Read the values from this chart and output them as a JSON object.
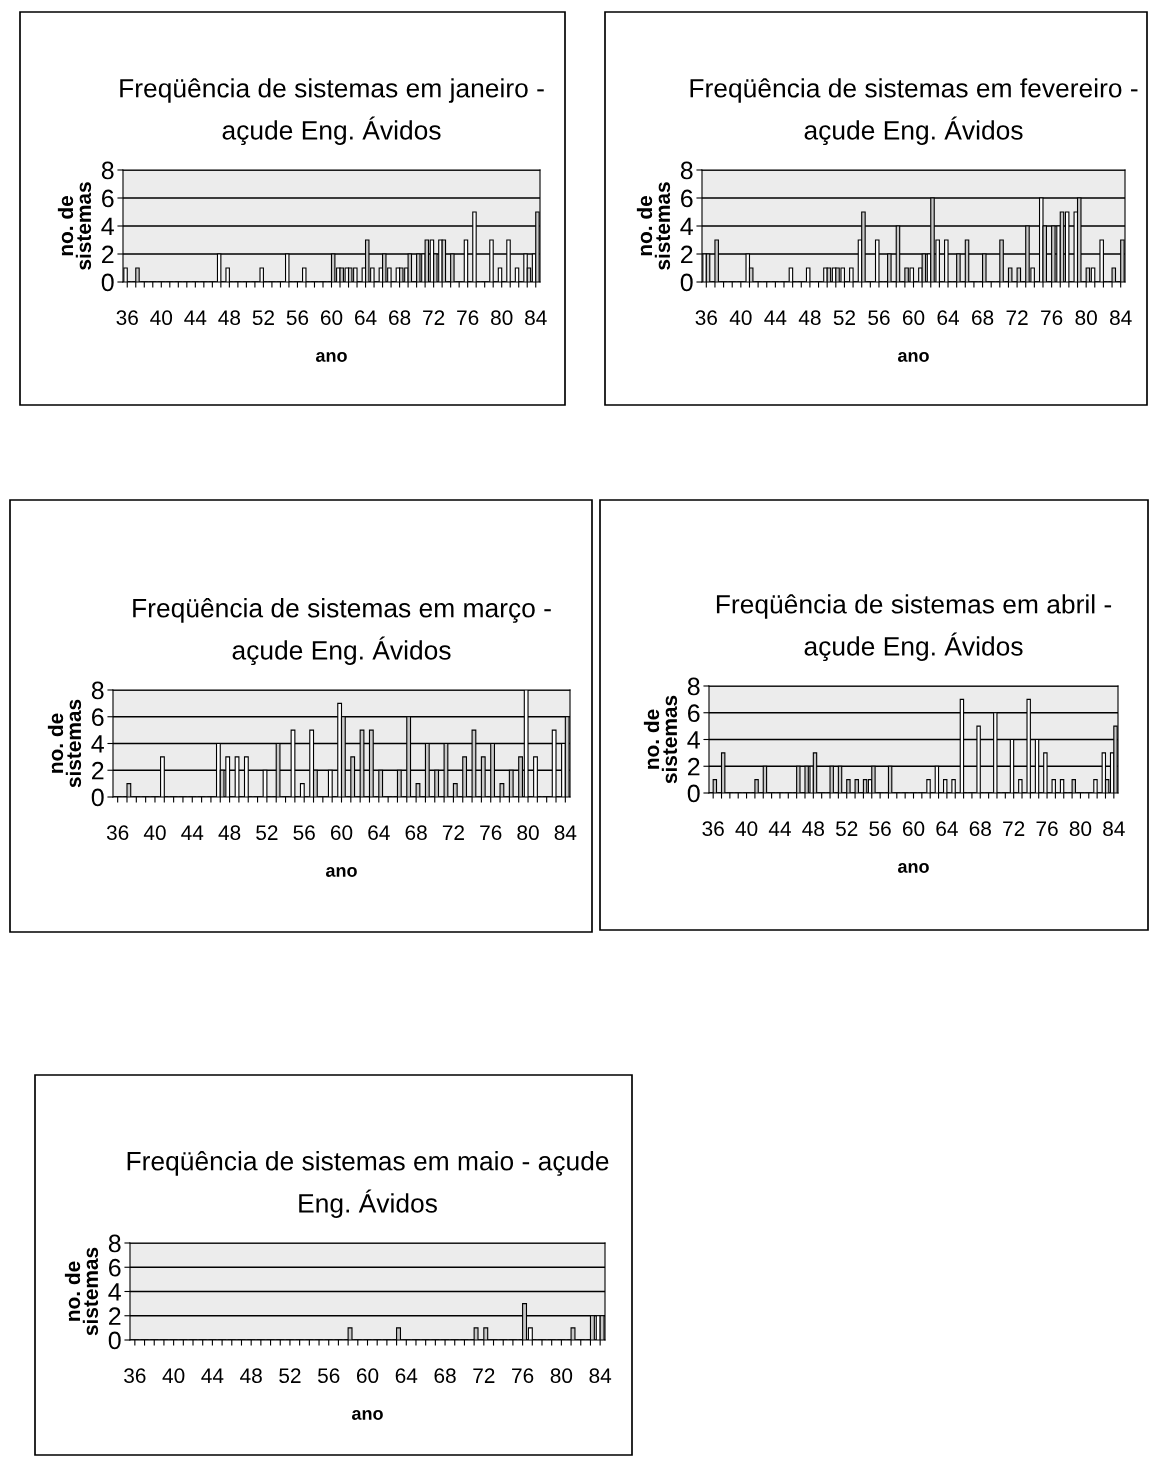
{
  "chart_data": [
    {
      "type": "bar",
      "title": "Freqüência de sistemas em janeiro -\naçude Eng. Ávidos",
      "xlabel": "ano",
      "ylabel": "no. de\nsistemas",
      "categories": [
        "36",
        null,
        null,
        null,
        "40",
        null,
        null,
        null,
        "44",
        null,
        null,
        null,
        "48",
        null,
        null,
        null,
        "52",
        null,
        null,
        null,
        "56",
        null,
        null,
        null,
        "60",
        null,
        null,
        null,
        "64",
        null,
        null,
        null,
        "68",
        null,
        null,
        null,
        "72",
        null,
        null,
        null,
        "76",
        null,
        null,
        null,
        "80",
        null,
        null,
        null,
        "84"
      ],
      "series": [
        {
          "color": "#ffffff",
          "values": [
            1,
            0,
            0,
            0,
            0,
            0,
            0,
            0,
            0,
            0,
            0,
            2,
            1,
            0,
            0,
            0,
            1,
            0,
            0,
            2,
            0,
            1,
            0,
            0,
            0,
            1,
            1,
            1,
            1,
            1,
            1,
            1,
            1,
            1,
            0,
            2,
            3,
            3,
            0,
            0,
            3,
            5,
            0,
            3,
            1,
            3,
            1,
            2,
            2
          ]
        },
        {
          "color": "#c8c8c8",
          "values": [
            0,
            1,
            0,
            0,
            0,
            0,
            0,
            0,
            0,
            0,
            0,
            0,
            0,
            0,
            0,
            0,
            0,
            0,
            0,
            0,
            0,
            0,
            0,
            0,
            2,
            1,
            1,
            0,
            3,
            0,
            2,
            0,
            1,
            2,
            2,
            3,
            2,
            3,
            2,
            0,
            0,
            0,
            0,
            0,
            0,
            0,
            0,
            1,
            5
          ]
        }
      ],
      "ylim": [
        0,
        8
      ],
      "yticks": [
        0,
        2,
        4,
        6,
        8
      ],
      "grid": "y"
    },
    {
      "type": "bar",
      "title": "Freqüência de sistemas em fevereiro -\naçude Eng. Ávidos",
      "xlabel": "ano",
      "ylabel": "no. de\nsistemas",
      "categories": [
        "36",
        null,
        null,
        null,
        "40",
        null,
        null,
        null,
        "44",
        null,
        null,
        null,
        "48",
        null,
        null,
        null,
        "52",
        null,
        null,
        null,
        "56",
        null,
        null,
        null,
        "60",
        null,
        null,
        null,
        "64",
        null,
        null,
        null,
        "68",
        null,
        null,
        null,
        "72",
        null,
        null,
        null,
        "76",
        null,
        null,
        null,
        "80",
        null,
        null,
        null,
        "84"
      ],
      "series": [
        {
          "color": "#ffffff",
          "values": [
            2,
            0,
            0,
            0,
            0,
            2,
            0,
            0,
            0,
            0,
            1,
            0,
            1,
            0,
            1,
            1,
            1,
            1,
            3,
            0,
            3,
            0,
            0,
            0,
            1,
            1,
            2,
            3,
            3,
            0,
            0,
            0,
            0,
            0,
            0,
            0,
            0,
            0,
            1,
            6,
            0,
            4,
            5,
            5,
            0,
            1,
            3,
            0,
            0
          ]
        },
        {
          "color": "#c8c8c8",
          "values": [
            2,
            3,
            0,
            0,
            0,
            1,
            0,
            0,
            0,
            0,
            0,
            0,
            0,
            0,
            1,
            1,
            0,
            0,
            5,
            0,
            0,
            2,
            4,
            1,
            0,
            2,
            6,
            0,
            0,
            2,
            3,
            0,
            2,
            0,
            3,
            1,
            1,
            4,
            0,
            4,
            4,
            5,
            0,
            6,
            1,
            0,
            0,
            1,
            3
          ]
        }
      ],
      "ylim": [
        0,
        8
      ],
      "yticks": [
        0,
        2,
        4,
        6,
        8
      ],
      "grid": "y"
    },
    {
      "type": "bar",
      "title": "Freqüência de sistemas em março -\naçude Eng. Ávidos",
      "xlabel": "ano",
      "ylabel": "no. de\nsistemas",
      "categories": [
        "36",
        null,
        null,
        null,
        "40",
        null,
        null,
        null,
        "44",
        null,
        null,
        null,
        "48",
        null,
        null,
        null,
        "52",
        null,
        null,
        null,
        "56",
        null,
        null,
        null,
        "60",
        null,
        null,
        null,
        "64",
        null,
        null,
        null,
        "68",
        null,
        null,
        null,
        "72",
        null,
        null,
        null,
        "76",
        null,
        null,
        null,
        "80",
        null,
        null,
        null,
        "84"
      ],
      "series": [
        {
          "color": "#ffffff",
          "values": [
            0,
            0,
            0,
            0,
            0,
            3,
            0,
            0,
            0,
            0,
            0,
            4,
            3,
            3,
            3,
            0,
            2,
            0,
            0,
            5,
            1,
            5,
            0,
            2,
            7,
            0,
            0,
            0,
            0,
            0,
            0,
            0,
            0,
            0,
            0,
            0,
            0,
            0,
            0,
            0,
            0,
            0,
            0,
            0,
            8,
            3,
            0,
            5,
            4
          ]
        },
        {
          "color": "#c8c8c8",
          "values": [
            0,
            1,
            0,
            0,
            0,
            0,
            0,
            0,
            0,
            0,
            0,
            2,
            0,
            0,
            0,
            0,
            0,
            4,
            0,
            0,
            0,
            2,
            0,
            0,
            6,
            3,
            5,
            5,
            2,
            0,
            2,
            6,
            1,
            4,
            2,
            4,
            1,
            3,
            5,
            3,
            4,
            1,
            2,
            3,
            0,
            0,
            0,
            0,
            6
          ]
        }
      ],
      "ylim": [
        0,
        8
      ],
      "yticks": [
        0,
        2,
        4,
        6,
        8
      ],
      "grid": "y"
    },
    {
      "type": "bar",
      "title": "Freqüência de sistemas em abril -\naçude Eng. Ávidos",
      "xlabel": "ano",
      "ylabel": "no. de\nsistemas",
      "categories": [
        "36",
        null,
        null,
        null,
        "40",
        null,
        null,
        null,
        "44",
        null,
        null,
        null,
        "48",
        null,
        null,
        null,
        "52",
        null,
        null,
        null,
        "56",
        null,
        null,
        null,
        "60",
        null,
        null,
        null,
        "64",
        null,
        null,
        null,
        "68",
        null,
        null,
        null,
        "72",
        null,
        null,
        null,
        "76",
        null,
        null,
        null,
        "80",
        null,
        null,
        null,
        "84"
      ],
      "series": [
        {
          "color": "#ffffff",
          "values": [
            0,
            0,
            0,
            0,
            0,
            0,
            0,
            0,
            0,
            0,
            0,
            0,
            2,
            0,
            0,
            0,
            0,
            0,
            0,
            1,
            0,
            0,
            0,
            0,
            0,
            0,
            1,
            2,
            1,
            1,
            7,
            0,
            5,
            0,
            6,
            0,
            4,
            1,
            7,
            4,
            3,
            1,
            1,
            0,
            0,
            0,
            1,
            3,
            3
          ]
        },
        {
          "color": "#c8c8c8",
          "values": [
            1,
            3,
            0,
            0,
            0,
            1,
            2,
            0,
            0,
            0,
            2,
            2,
            3,
            0,
            2,
            2,
            1,
            1,
            1,
            2,
            0,
            2,
            0,
            0,
            0,
            0,
            0,
            0,
            0,
            0,
            0,
            0,
            0,
            0,
            0,
            0,
            0,
            0,
            0,
            0,
            0,
            0,
            0,
            1,
            0,
            0,
            0,
            1,
            5
          ]
        }
      ],
      "ylim": [
        0,
        8
      ],
      "yticks": [
        0,
        2,
        4,
        6,
        8
      ],
      "grid": "y"
    },
    {
      "type": "bar",
      "title": "Freqüência de sistemas em maio - açude\nEng. Ávidos",
      "xlabel": "ano",
      "ylabel": "no. de\nsistemas",
      "categories": [
        "36",
        null,
        null,
        null,
        "40",
        null,
        null,
        null,
        "44",
        null,
        null,
        null,
        "48",
        null,
        null,
        null,
        "52",
        null,
        null,
        null,
        "56",
        null,
        null,
        null,
        "60",
        null,
        null,
        null,
        "64",
        null,
        null,
        null,
        "68",
        null,
        null,
        null,
        "72",
        null,
        null,
        null,
        "76",
        null,
        null,
        null,
        "80",
        null,
        null,
        null,
        "84"
      ],
      "series": [
        {
          "color": "#ffffff",
          "values": [
            0,
            0,
            0,
            0,
            0,
            0,
            0,
            0,
            0,
            0,
            0,
            0,
            0,
            0,
            0,
            0,
            0,
            0,
            0,
            0,
            0,
            0,
            0,
            0,
            0,
            0,
            0,
            0,
            0,
            0,
            0,
            0,
            0,
            0,
            0,
            0,
            0,
            0,
            0,
            0,
            0,
            1,
            0,
            0,
            0,
            0,
            0,
            0,
            2
          ]
        },
        {
          "color": "#c8c8c8",
          "values": [
            0,
            0,
            0,
            0,
            0,
            0,
            0,
            0,
            0,
            0,
            0,
            0,
            0,
            0,
            0,
            0,
            0,
            0,
            0,
            0,
            0,
            0,
            1,
            0,
            0,
            0,
            0,
            1,
            0,
            0,
            0,
            0,
            0,
            0,
            0,
            1,
            1,
            0,
            0,
            0,
            3,
            0,
            0,
            0,
            0,
            1,
            0,
            2,
            2
          ]
        }
      ],
      "ylim": [
        0,
        8
      ],
      "yticks": [
        0,
        2,
        4,
        6,
        8
      ],
      "grid": "y"
    }
  ]
}
